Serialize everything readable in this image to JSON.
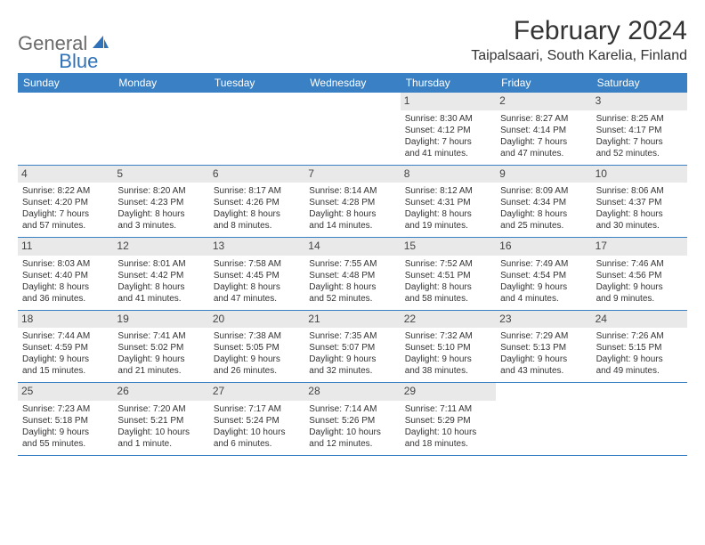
{
  "logo": {
    "textGray": "General",
    "textBlue": "Blue"
  },
  "title": "February 2024",
  "location": "Taipalsaari, South Karelia, Finland",
  "weekdays": [
    "Sunday",
    "Monday",
    "Tuesday",
    "Wednesday",
    "Thursday",
    "Friday",
    "Saturday"
  ],
  "colors": {
    "headerBar": "#3a80c4",
    "dayNumBg": "#e9e9e9",
    "text": "#333333",
    "logoGray": "#6b6b6b",
    "logoBlue": "#2f72b8"
  },
  "weeks": [
    [
      null,
      null,
      null,
      null,
      {
        "n": "1",
        "sunrise": "Sunrise: 8:30 AM",
        "sunset": "Sunset: 4:12 PM",
        "d1": "Daylight: 7 hours",
        "d2": "and 41 minutes."
      },
      {
        "n": "2",
        "sunrise": "Sunrise: 8:27 AM",
        "sunset": "Sunset: 4:14 PM",
        "d1": "Daylight: 7 hours",
        "d2": "and 47 minutes."
      },
      {
        "n": "3",
        "sunrise": "Sunrise: 8:25 AM",
        "sunset": "Sunset: 4:17 PM",
        "d1": "Daylight: 7 hours",
        "d2": "and 52 minutes."
      }
    ],
    [
      {
        "n": "4",
        "sunrise": "Sunrise: 8:22 AM",
        "sunset": "Sunset: 4:20 PM",
        "d1": "Daylight: 7 hours",
        "d2": "and 57 minutes."
      },
      {
        "n": "5",
        "sunrise": "Sunrise: 8:20 AM",
        "sunset": "Sunset: 4:23 PM",
        "d1": "Daylight: 8 hours",
        "d2": "and 3 minutes."
      },
      {
        "n": "6",
        "sunrise": "Sunrise: 8:17 AM",
        "sunset": "Sunset: 4:26 PM",
        "d1": "Daylight: 8 hours",
        "d2": "and 8 minutes."
      },
      {
        "n": "7",
        "sunrise": "Sunrise: 8:14 AM",
        "sunset": "Sunset: 4:28 PM",
        "d1": "Daylight: 8 hours",
        "d2": "and 14 minutes."
      },
      {
        "n": "8",
        "sunrise": "Sunrise: 8:12 AM",
        "sunset": "Sunset: 4:31 PM",
        "d1": "Daylight: 8 hours",
        "d2": "and 19 minutes."
      },
      {
        "n": "9",
        "sunrise": "Sunrise: 8:09 AM",
        "sunset": "Sunset: 4:34 PM",
        "d1": "Daylight: 8 hours",
        "d2": "and 25 minutes."
      },
      {
        "n": "10",
        "sunrise": "Sunrise: 8:06 AM",
        "sunset": "Sunset: 4:37 PM",
        "d1": "Daylight: 8 hours",
        "d2": "and 30 minutes."
      }
    ],
    [
      {
        "n": "11",
        "sunrise": "Sunrise: 8:03 AM",
        "sunset": "Sunset: 4:40 PM",
        "d1": "Daylight: 8 hours",
        "d2": "and 36 minutes."
      },
      {
        "n": "12",
        "sunrise": "Sunrise: 8:01 AM",
        "sunset": "Sunset: 4:42 PM",
        "d1": "Daylight: 8 hours",
        "d2": "and 41 minutes."
      },
      {
        "n": "13",
        "sunrise": "Sunrise: 7:58 AM",
        "sunset": "Sunset: 4:45 PM",
        "d1": "Daylight: 8 hours",
        "d2": "and 47 minutes."
      },
      {
        "n": "14",
        "sunrise": "Sunrise: 7:55 AM",
        "sunset": "Sunset: 4:48 PM",
        "d1": "Daylight: 8 hours",
        "d2": "and 52 minutes."
      },
      {
        "n": "15",
        "sunrise": "Sunrise: 7:52 AM",
        "sunset": "Sunset: 4:51 PM",
        "d1": "Daylight: 8 hours",
        "d2": "and 58 minutes."
      },
      {
        "n": "16",
        "sunrise": "Sunrise: 7:49 AM",
        "sunset": "Sunset: 4:54 PM",
        "d1": "Daylight: 9 hours",
        "d2": "and 4 minutes."
      },
      {
        "n": "17",
        "sunrise": "Sunrise: 7:46 AM",
        "sunset": "Sunset: 4:56 PM",
        "d1": "Daylight: 9 hours",
        "d2": "and 9 minutes."
      }
    ],
    [
      {
        "n": "18",
        "sunrise": "Sunrise: 7:44 AM",
        "sunset": "Sunset: 4:59 PM",
        "d1": "Daylight: 9 hours",
        "d2": "and 15 minutes."
      },
      {
        "n": "19",
        "sunrise": "Sunrise: 7:41 AM",
        "sunset": "Sunset: 5:02 PM",
        "d1": "Daylight: 9 hours",
        "d2": "and 21 minutes."
      },
      {
        "n": "20",
        "sunrise": "Sunrise: 7:38 AM",
        "sunset": "Sunset: 5:05 PM",
        "d1": "Daylight: 9 hours",
        "d2": "and 26 minutes."
      },
      {
        "n": "21",
        "sunrise": "Sunrise: 7:35 AM",
        "sunset": "Sunset: 5:07 PM",
        "d1": "Daylight: 9 hours",
        "d2": "and 32 minutes."
      },
      {
        "n": "22",
        "sunrise": "Sunrise: 7:32 AM",
        "sunset": "Sunset: 5:10 PM",
        "d1": "Daylight: 9 hours",
        "d2": "and 38 minutes."
      },
      {
        "n": "23",
        "sunrise": "Sunrise: 7:29 AM",
        "sunset": "Sunset: 5:13 PM",
        "d1": "Daylight: 9 hours",
        "d2": "and 43 minutes."
      },
      {
        "n": "24",
        "sunrise": "Sunrise: 7:26 AM",
        "sunset": "Sunset: 5:15 PM",
        "d1": "Daylight: 9 hours",
        "d2": "and 49 minutes."
      }
    ],
    [
      {
        "n": "25",
        "sunrise": "Sunrise: 7:23 AM",
        "sunset": "Sunset: 5:18 PM",
        "d1": "Daylight: 9 hours",
        "d2": "and 55 minutes."
      },
      {
        "n": "26",
        "sunrise": "Sunrise: 7:20 AM",
        "sunset": "Sunset: 5:21 PM",
        "d1": "Daylight: 10 hours",
        "d2": "and 1 minute."
      },
      {
        "n": "27",
        "sunrise": "Sunrise: 7:17 AM",
        "sunset": "Sunset: 5:24 PM",
        "d1": "Daylight: 10 hours",
        "d2": "and 6 minutes."
      },
      {
        "n": "28",
        "sunrise": "Sunrise: 7:14 AM",
        "sunset": "Sunset: 5:26 PM",
        "d1": "Daylight: 10 hours",
        "d2": "and 12 minutes."
      },
      {
        "n": "29",
        "sunrise": "Sunrise: 7:11 AM",
        "sunset": "Sunset: 5:29 PM",
        "d1": "Daylight: 10 hours",
        "d2": "and 18 minutes."
      },
      null,
      null
    ]
  ]
}
